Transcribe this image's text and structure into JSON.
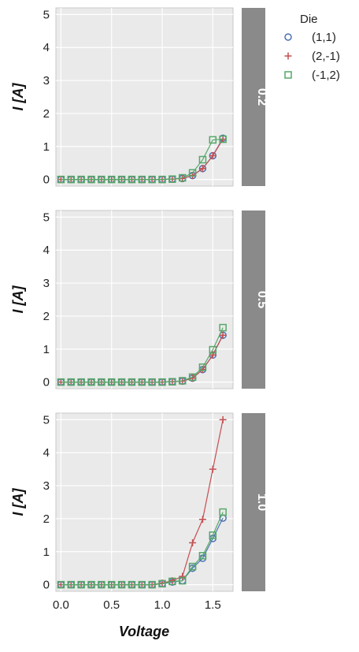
{
  "chart_data": {
    "type": "line",
    "xlabel": "Voltage",
    "ylabel": "I [A]",
    "xlim": [
      -0.05,
      1.7
    ],
    "ylim": [
      -0.2,
      5.2
    ],
    "xticks": [
      0.0,
      0.5,
      1.0,
      1.5
    ],
    "xtick_labels": [
      "0.0",
      "0.5",
      "1.0",
      "1.5"
    ],
    "yticks": [
      0,
      1,
      2,
      3,
      4,
      5
    ],
    "ytick_labels": [
      "0",
      "1",
      "2",
      "3",
      "4",
      "5"
    ],
    "grid": true,
    "legend": {
      "title": "Die",
      "position": "right",
      "entries": [
        {
          "label": "(1,1)",
          "marker": "circle",
          "color": "#4c72b0"
        },
        {
          "label": "(2,-1)",
          "marker": "plus",
          "color": "#c44e52"
        },
        {
          "label": "(-1,2)",
          "marker": "square",
          "color": "#55a868"
        }
      ]
    },
    "x": [
      0.0,
      0.1,
      0.2,
      0.3,
      0.4,
      0.5,
      0.6,
      0.7,
      0.8,
      0.9,
      1.0,
      1.1,
      1.2,
      1.3,
      1.4,
      1.5,
      1.6
    ],
    "panels": [
      {
        "label": "0.2",
        "series": [
          {
            "name": "(1,1)",
            "values": [
              0,
              0,
              0,
              0,
              0,
              0,
              0,
              0,
              0,
              0,
              0,
              0.01,
              0.03,
              0.12,
              0.33,
              0.72,
              1.25
            ]
          },
          {
            "name": "(2,-1)",
            "values": [
              0,
              0,
              0,
              0,
              0,
              0,
              0,
              0,
              0,
              0,
              0,
              0.01,
              0.03,
              0.12,
              0.33,
              0.72,
              1.22
            ]
          },
          {
            "name": "(-1,2)",
            "values": [
              0,
              0,
              0,
              0,
              0,
              0,
              0,
              0,
              0,
              0,
              0,
              0.01,
              0.05,
              0.2,
              0.6,
              1.2,
              1.22
            ]
          }
        ]
      },
      {
        "label": "0.5",
        "series": [
          {
            "name": "(1,1)",
            "values": [
              0,
              0,
              0,
              0,
              0,
              0,
              0,
              0,
              0,
              0,
              0,
              0.01,
              0.03,
              0.12,
              0.38,
              0.82,
              1.42
            ]
          },
          {
            "name": "(2,-1)",
            "values": [
              0,
              0,
              0,
              0,
              0,
              0,
              0,
              0,
              0,
              0,
              0,
              0.01,
              0.03,
              0.12,
              0.38,
              0.82,
              1.42
            ]
          },
          {
            "name": "(-1,2)",
            "values": [
              0,
              0,
              0,
              0,
              0,
              0,
              0,
              0,
              0,
              0,
              0,
              0.01,
              0.04,
              0.15,
              0.45,
              0.98,
              1.65
            ]
          }
        ]
      },
      {
        "label": "1.0",
        "series": [
          {
            "name": "(1,1)",
            "values": [
              0,
              0,
              0,
              0,
              0,
              0,
              0,
              0,
              0,
              0,
              0.03,
              0.08,
              0.12,
              0.5,
              0.8,
              1.4,
              2.02
            ]
          },
          {
            "name": "(2,-1)",
            "values": [
              0,
              0,
              0,
              0,
              0,
              0,
              0,
              0,
              0,
              0,
              0.05,
              0.12,
              0.25,
              1.27,
              1.98,
              3.5,
              5.0
            ]
          },
          {
            "name": "(-1,2)",
            "values": [
              0,
              0,
              0,
              0,
              0,
              0,
              0,
              0,
              0,
              0,
              0.03,
              0.1,
              0.12,
              0.55,
              0.88,
              1.5,
              2.2
            ]
          }
        ]
      }
    ]
  }
}
